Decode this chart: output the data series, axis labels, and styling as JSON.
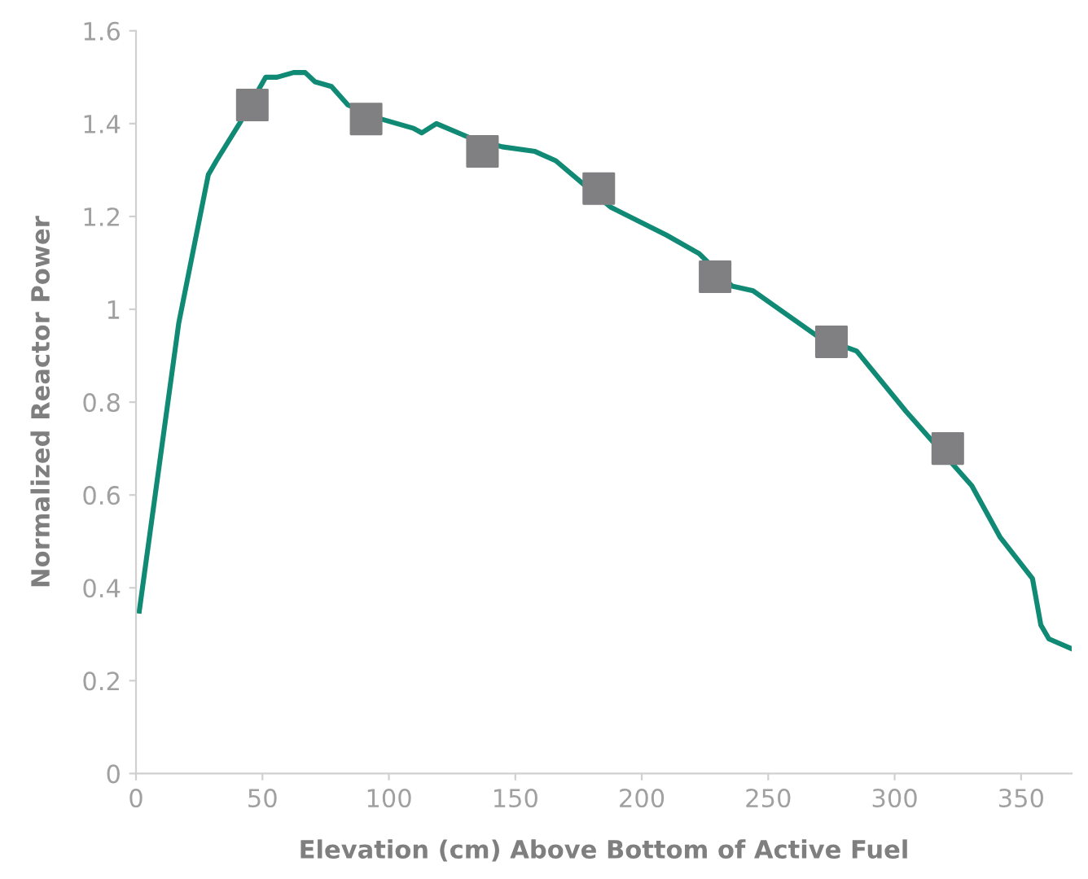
{
  "chart_data": {
    "type": "line",
    "xlabel": "Elevation (cm) Above Bottom of Active Fuel",
    "ylabel": "Normalized Reactor Power",
    "xlim": [
      0,
      370
    ],
    "ylim": [
      0,
      1.6
    ],
    "xticks": [
      0,
      50,
      100,
      150,
      200,
      250,
      300,
      350
    ],
    "yticks": [
      0,
      0.2,
      0.4,
      0.6,
      0.8,
      1,
      1.2,
      1.4,
      1.6
    ],
    "grid": false,
    "series": [
      {
        "color": "#108a74",
        "marker": "none",
        "x": [
          1.3,
          16.9,
          28.6,
          31.8,
          40.9,
          51.3,
          55.8,
          62.3,
          66.9,
          70.8,
          77.3,
          83.8,
          96.8,
          109.7,
          113,
          118.8,
          131.8,
          144.8,
          157.8,
          166,
          174.7,
          187.7,
          209.7,
          222.7,
          235.7,
          244,
          270,
          285,
          304.5,
          330.5,
          341.6,
          354.5,
          357.8,
          361,
          369.5
        ],
        "values": [
          0.35,
          0.97,
          1.29,
          1.32,
          1.4,
          1.5,
          1.5,
          1.51,
          1.51,
          1.49,
          1.48,
          1.44,
          1.41,
          1.39,
          1.38,
          1.4,
          1.37,
          1.35,
          1.34,
          1.32,
          1.28,
          1.22,
          1.16,
          1.12,
          1.05,
          1.04,
          0.94,
          0.91,
          0.78,
          0.62,
          0.51,
          0.42,
          0.32,
          0.29,
          0.27
        ]
      },
      {
        "type": "scatter",
        "color": "#808083",
        "marker": "square",
        "x": [
          46,
          91,
          137,
          183,
          229,
          275,
          321
        ],
        "values": [
          1.44,
          1.41,
          1.34,
          1.26,
          1.07,
          0.93,
          0.7
        ]
      }
    ]
  }
}
